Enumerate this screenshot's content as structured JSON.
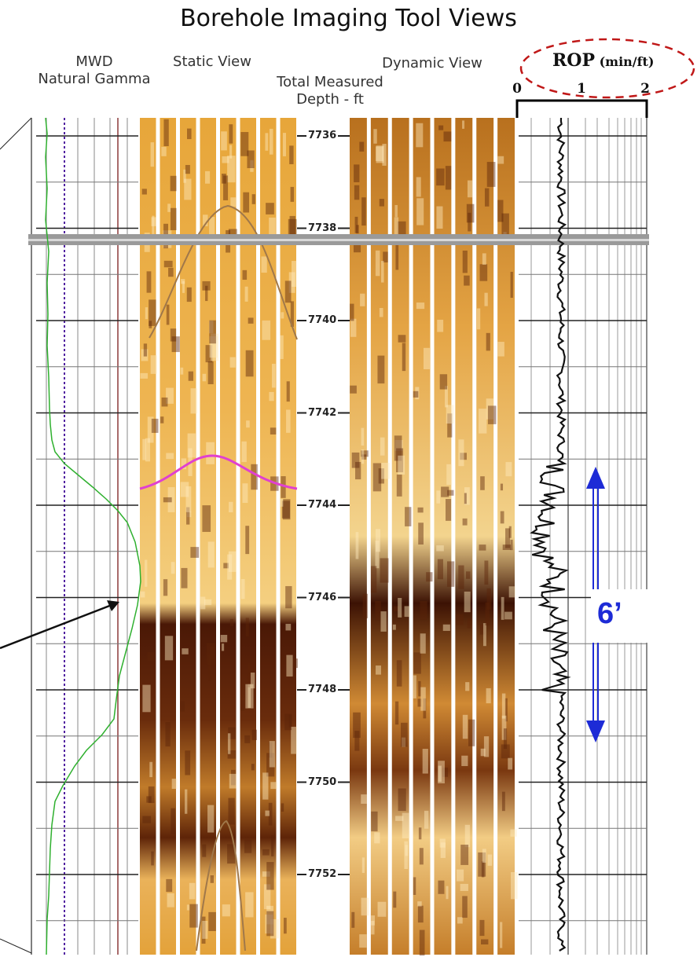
{
  "title": "Borehole Imaging Tool Views",
  "headers": {
    "mwd_line1": "MWD",
    "mwd_line2": "Natural Gamma",
    "static_view": "Static View",
    "dynamic_view": "Dynamic View",
    "depth_line1": "Total Measured",
    "depth_line2": "Depth - ft",
    "rop_label": "ROP",
    "rop_units": "(min/ft)"
  },
  "rop_scale_ticks": [
    "0",
    "1",
    "2"
  ],
  "depth_labels": [
    "7736",
    "7738",
    "7740",
    "7742",
    "7744",
    "7746",
    "7748",
    "7750",
    "7752"
  ],
  "annotation": {
    "interval_label": "6’"
  },
  "colors": {
    "gamma_curve": "#2fb02f",
    "image_light": "#e9a93a",
    "image_dark": "#3a1404",
    "horizon": "#e040d0",
    "interval_arrow": "#1d2bd6",
    "callout_ellipse": "#c01818"
  }
}
